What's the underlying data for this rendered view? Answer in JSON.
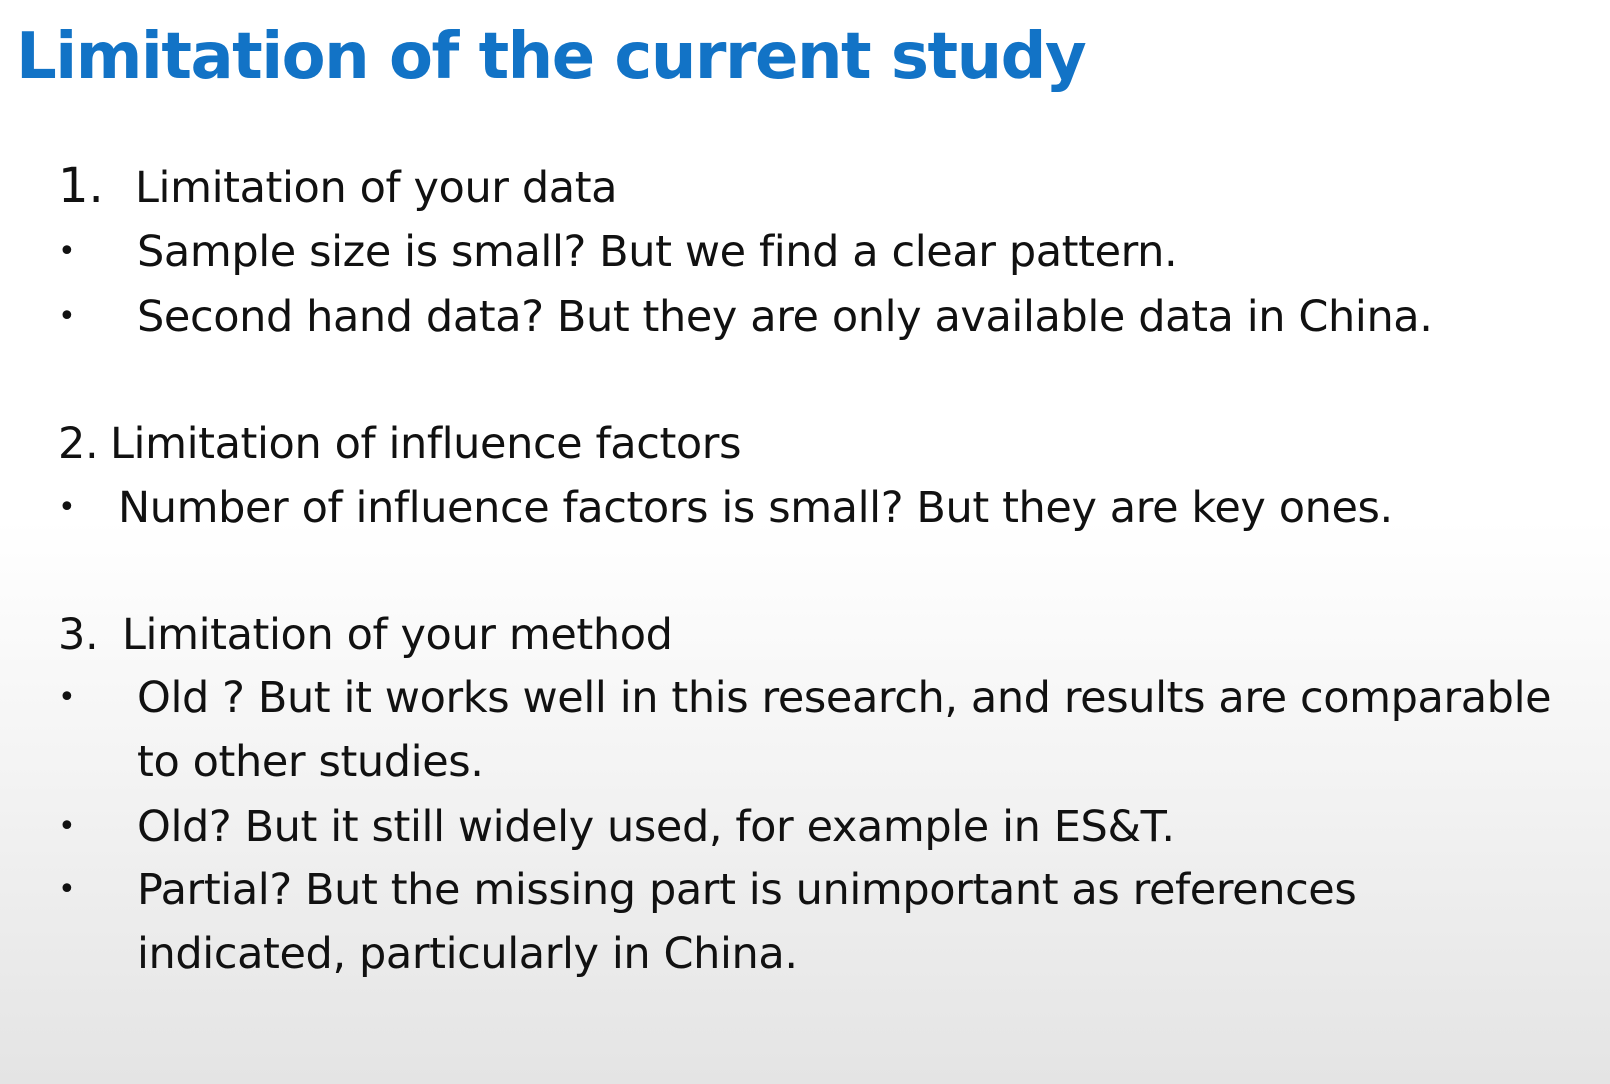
{
  "title": "Limitation of the current study",
  "colors": {
    "title": "#1273c6",
    "text": "#111111"
  },
  "sections": [
    {
      "number": "1.",
      "heading": "Limitation of your data",
      "bullets": [
        {
          "lines": [
            "Sample size is small? But we find a clear pattern."
          ]
        },
        {
          "lines": [
            "Second hand data? But they are only available data in China."
          ]
        }
      ]
    },
    {
      "number": "2.",
      "heading": "Limitation of influence factors",
      "bullets": [
        {
          "lines": [
            "Number of influence factors is small? But they are key ones."
          ]
        }
      ]
    },
    {
      "number": "3.",
      "heading": "Limitation of your method",
      "bullets": [
        {
          "lines": [
            "Old ? But it works well in this research, and results are comparable",
            "to other studies."
          ]
        },
        {
          "lines": [
            "Old? But it still widely used, for example in ES&T."
          ]
        },
        {
          "lines": [
            "Partial? But the missing part is unimportant as references",
            "indicated, particularly in China."
          ]
        }
      ]
    }
  ],
  "bullet_glyph": "•"
}
